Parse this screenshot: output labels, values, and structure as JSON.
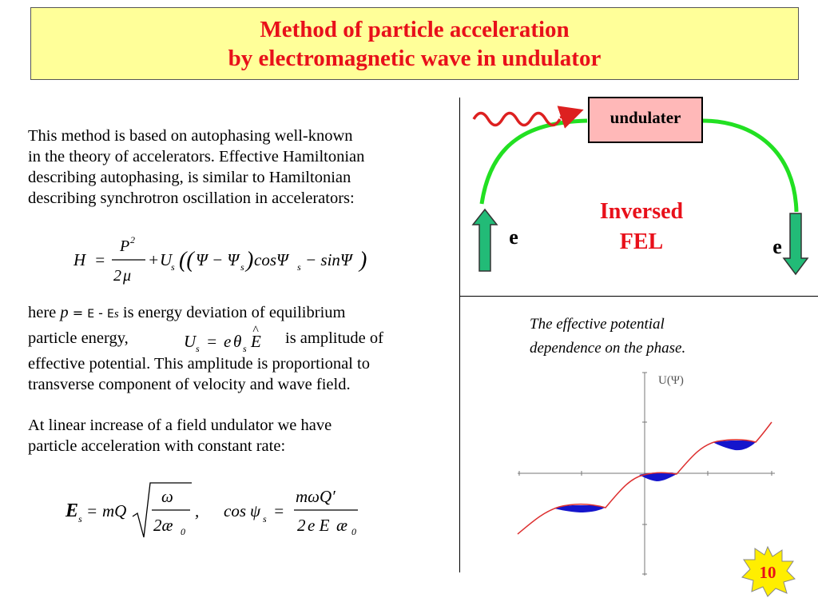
{
  "slide": {
    "title_line1": "Method of particle acceleration",
    "title_line2": "by electromagnetic wave in undulator",
    "para1": [
      "This method is based on autophasing well-known",
      "in the theory of accelerators. Effective Hamiltonian",
      "describing autophasing, is similar to Hamiltonian",
      "describing synchrotron oscillation in accelerators:"
    ],
    "para2_here": "here",
    "para2_p": "p",
    "para2_eq": " = ",
    "para2_E": "E",
    "para2_minus": " - ",
    "para2_Es": "E",
    "para2_s": "s",
    "para2_rest": " is energy deviation of equilibrium",
    "para2_line2_a": "particle energy,",
    "para2_line2_b": "is amplitude of",
    "para2_line3": "effective potential. This amplitude is proportional to",
    "para2_line4": "transverse component of velocity and wave field.",
    "para3": [
      "At linear increase of a field undulator we have",
      "particle acceleration with constant rate:"
    ],
    "caption_line1": "The effective potential",
    "caption_line2": "dependence on the phase.",
    "page_number": "10"
  },
  "diagram": {
    "undulator_label": "undulater",
    "center_label_line1": "Inversed",
    "center_label_line2": "FEL",
    "left_particle": "e",
    "right_particle": "e"
  },
  "plot": {
    "ylabel": "U(Ψ)"
  },
  "colors": {
    "title_bg": "#ffff99",
    "title_text": "#e8101a",
    "arc_green": "#22e022",
    "arrow_fill": "#22bb77",
    "undulator_box": "#ffb8b8",
    "curve_red": "#dd3030",
    "well_blue": "#1515cc",
    "badge": "#ffee00"
  }
}
